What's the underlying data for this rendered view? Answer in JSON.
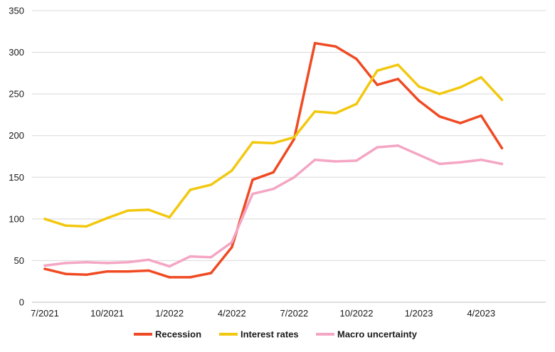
{
  "chart_data": {
    "type": "line",
    "title": "",
    "xlabel": "",
    "ylabel": "",
    "ylim": [
      0,
      350
    ],
    "yticks": [
      0,
      50,
      100,
      150,
      200,
      250,
      300,
      350
    ],
    "grid": "horizontal",
    "legend_position": "bottom",
    "x": [
      "7/2021",
      "8/2021",
      "9/2021",
      "10/2021",
      "11/2021",
      "12/2021",
      "1/2022",
      "2/2022",
      "3/2022",
      "4/2022",
      "5/2022",
      "6/2022",
      "7/2022",
      "8/2022",
      "9/2022",
      "10/2022",
      "11/2022",
      "12/2022",
      "1/2023",
      "2/2023",
      "3/2023",
      "4/2023",
      "5/2023"
    ],
    "xtick_labels": [
      "7/2021",
      "10/2021",
      "1/2022",
      "4/2022",
      "7/2022",
      "10/2022",
      "1/2023",
      "4/2023"
    ],
    "series": [
      {
        "name": "Recession",
        "color": "#ef4a23",
        "values": [
          40,
          34,
          33,
          37,
          37,
          38,
          30,
          30,
          35,
          66,
          147,
          156,
          196,
          311,
          307,
          292,
          261,
          268,
          242,
          223,
          215,
          224,
          185
        ]
      },
      {
        "name": "Interest rates",
        "color": "#f2c80f",
        "values": [
          100,
          92,
          91,
          101,
          110,
          111,
          102,
          135,
          141,
          158,
          192,
          191,
          198,
          229,
          227,
          238,
          278,
          285,
          259,
          250,
          258,
          270,
          243
        ]
      },
      {
        "name": "Macro uncertainty",
        "color": "#f4a6c4",
        "values": [
          44,
          47,
          48,
          47,
          48,
          51,
          43,
          55,
          54,
          72,
          130,
          136,
          150,
          171,
          169,
          170,
          186,
          188,
          177,
          166,
          168,
          171,
          166
        ]
      }
    ]
  }
}
